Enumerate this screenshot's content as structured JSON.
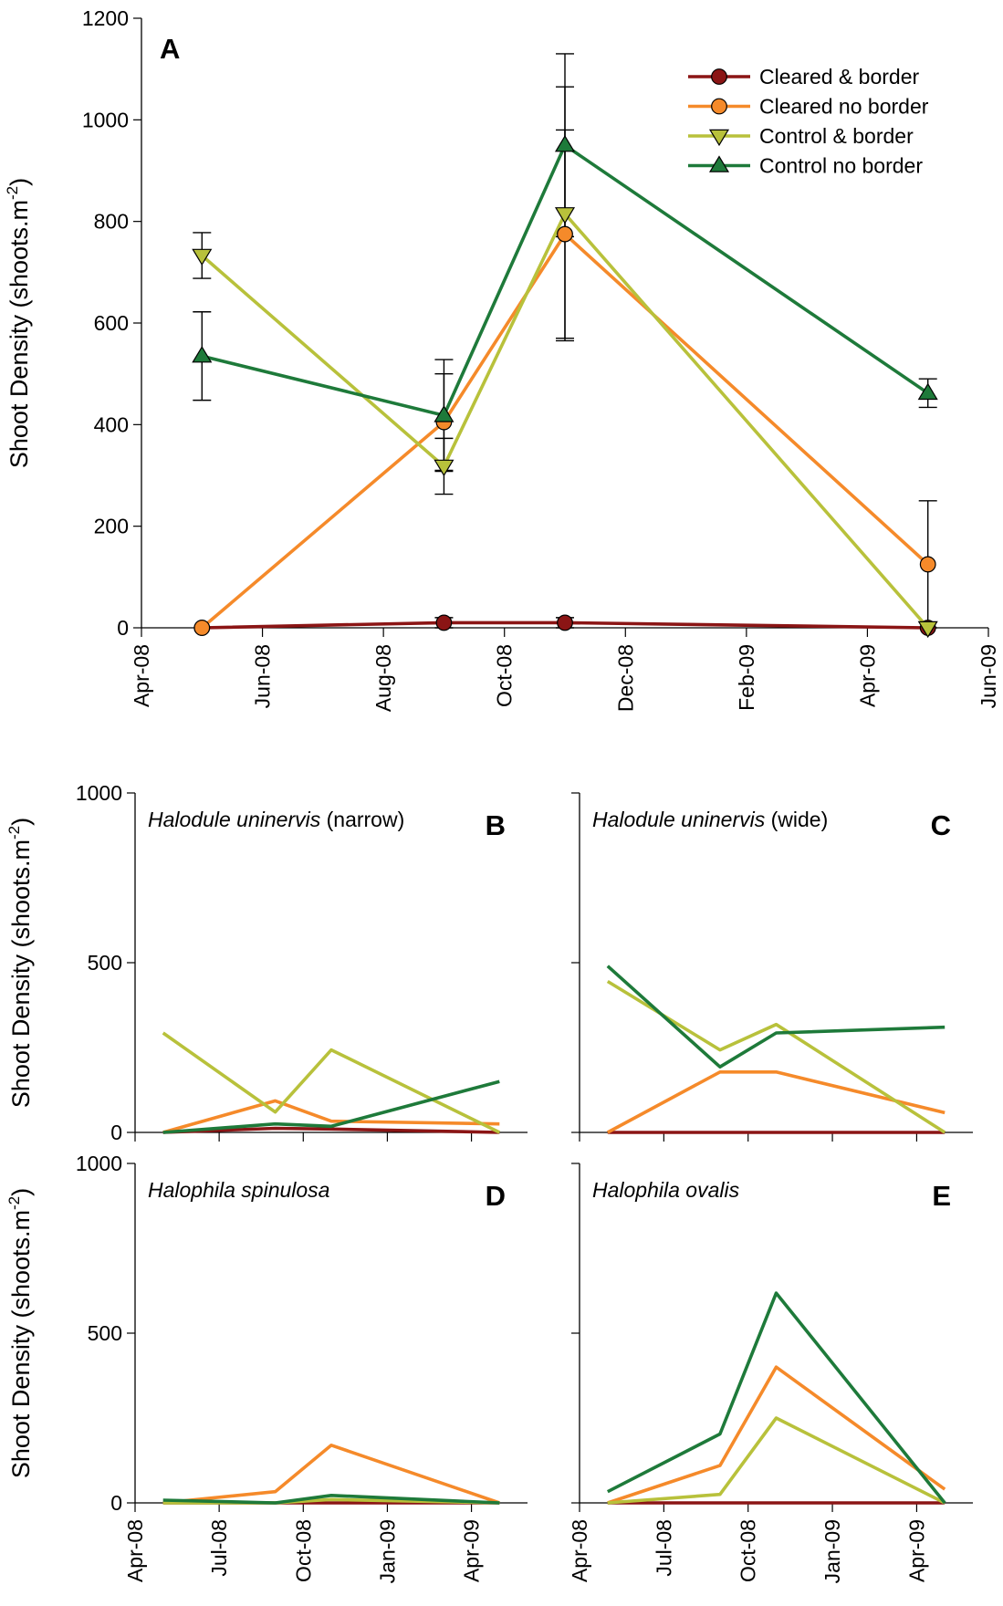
{
  "colors": {
    "Cleared & border": "#8b1515",
    "Cleared no border": "#f58a2a",
    "Control & border": "#b8c13b",
    "Control no border": "#1e7a3a"
  },
  "series_names": [
    "Cleared & border",
    "Cleared no border",
    "Control & border",
    "Control no border"
  ],
  "chart_data": [
    {
      "panel": "A",
      "type": "line",
      "ylabel": "Shoot Density (shoots.m",
      "ylabel_sup": "-2",
      "ylabel_close": ")",
      "ylim": [
        0,
        1200
      ],
      "yticks": [
        0,
        200,
        400,
        600,
        800,
        1000,
        1200
      ],
      "xlim": [
        "2008-04-01",
        "2009-06-01"
      ],
      "xticks": [
        "2008-04-01",
        "2008-06-01",
        "2008-08-01",
        "2008-10-01",
        "2008-12-01",
        "2009-02-01",
        "2009-04-01",
        "2009-06-01"
      ],
      "xticklabels": [
        "Apr-08",
        "Jun-08",
        "Aug-08",
        "Oct-08",
        "Dec-08",
        "Feb-09",
        "Apr-09",
        "Jun-09"
      ],
      "legend": "top-right",
      "x": [
        "2008-05-01",
        "2008-09-01",
        "2008-11-01",
        "2009-05-01"
      ],
      "series": [
        {
          "name": "Cleared & border",
          "marker": "circle",
          "values": [
            0,
            10,
            10,
            0
          ],
          "errors": [
            0,
            10,
            10,
            0
          ]
        },
        {
          "name": "Cleared no border",
          "marker": "circle",
          "values": [
            0,
            405,
            775,
            125
          ],
          "errors": [
            0,
            95,
            205,
            125
          ]
        },
        {
          "name": "Control & border",
          "marker": "triangle-down",
          "values": [
            733,
            318,
            815,
            0
          ],
          "errors": [
            45,
            55,
            250,
            0
          ]
        },
        {
          "name": "Control no border",
          "marker": "triangle-up",
          "values": [
            535,
            418,
            950,
            462
          ],
          "errors": [
            87,
            110,
            180,
            28
          ]
        }
      ]
    },
    {
      "panel": "B",
      "type": "line",
      "species": "Halodule uninervis",
      "species_suffix": " (narrow)",
      "ylabel": "Shoot Density (shoots.m",
      "ylabel_sup": "-2",
      "ylabel_close": ")",
      "ylim": [
        0,
        1000
      ],
      "yticks": [
        0,
        500,
        1000
      ],
      "xlim": [
        "2008-04-01",
        "2009-06-01"
      ],
      "x": [
        "2008-05-01",
        "2008-09-01",
        "2008-11-01",
        "2009-05-01"
      ],
      "series": [
        {
          "name": "Cleared & border",
          "values": [
            0,
            12,
            10,
            0
          ]
        },
        {
          "name": "Cleared no border",
          "values": [
            0,
            93,
            33,
            25
          ]
        },
        {
          "name": "Control & border",
          "values": [
            293,
            60,
            243,
            0
          ]
        },
        {
          "name": "Control no border",
          "values": [
            0,
            25,
            18,
            150
          ]
        }
      ]
    },
    {
      "panel": "C",
      "type": "line",
      "species": "Halodule uninervis",
      "species_suffix": " (wide)",
      "ylim": [
        0,
        1000
      ],
      "xlim": [
        "2008-04-01",
        "2009-06-01"
      ],
      "x": [
        "2008-05-01",
        "2008-09-01",
        "2008-11-01",
        "2009-05-01"
      ],
      "series": [
        {
          "name": "Cleared & border",
          "values": [
            0,
            0,
            0,
            0
          ]
        },
        {
          "name": "Cleared no border",
          "values": [
            0,
            178,
            178,
            58
          ]
        },
        {
          "name": "Control & border",
          "values": [
            445,
            243,
            318,
            0
          ]
        },
        {
          "name": "Control no border",
          "values": [
            490,
            193,
            293,
            310
          ]
        }
      ]
    },
    {
      "panel": "D",
      "type": "line",
      "species": "Halophila spinulosa",
      "species_suffix": "",
      "ylabel": "Shoot Density (shoots.m",
      "ylabel_sup": "-2",
      "ylabel_close": ")",
      "ylim": [
        0,
        1000
      ],
      "yticks": [
        0,
        500,
        1000
      ],
      "xlim": [
        "2008-04-01",
        "2009-06-01"
      ],
      "xticks": [
        "2008-04-01",
        "2008-07-01",
        "2008-10-01",
        "2009-01-01",
        "2009-04-01"
      ],
      "xticklabels": [
        "Apr-08",
        "Jul-08",
        "Oct-08",
        "Jan-09",
        "Apr-09"
      ],
      "x": [
        "2008-05-01",
        "2008-09-01",
        "2008-11-01",
        "2009-05-01"
      ],
      "series": [
        {
          "name": "Cleared & border",
          "values": [
            0,
            0,
            0,
            0
          ]
        },
        {
          "name": "Cleared no border",
          "values": [
            0,
            33,
            170,
            0
          ]
        },
        {
          "name": "Control & border",
          "values": [
            0,
            0,
            10,
            0
          ]
        },
        {
          "name": "Control no border",
          "values": [
            8,
            0,
            22,
            0
          ]
        }
      ]
    },
    {
      "panel": "E",
      "type": "line",
      "species": "Halophila ovalis",
      "species_suffix": "",
      "ylim": [
        0,
        1000
      ],
      "xlim": [
        "2008-04-01",
        "2009-06-01"
      ],
      "xticks": [
        "2008-04-01",
        "2008-07-01",
        "2008-10-01",
        "2009-01-01",
        "2009-04-01"
      ],
      "xticklabels": [
        "Apr-08",
        "Jul-08",
        "Oct-08",
        "Jan-09",
        "Apr-09"
      ],
      "x": [
        "2008-05-01",
        "2008-09-01",
        "2008-11-01",
        "2009-05-01"
      ],
      "series": [
        {
          "name": "Cleared & border",
          "values": [
            0,
            0,
            0,
            0
          ]
        },
        {
          "name": "Cleared no border",
          "values": [
            0,
            110,
            400,
            40
          ]
        },
        {
          "name": "Control & border",
          "values": [
            0,
            25,
            250,
            0
          ]
        },
        {
          "name": "Control no border",
          "values": [
            33,
            203,
            618,
            0
          ]
        }
      ]
    }
  ]
}
